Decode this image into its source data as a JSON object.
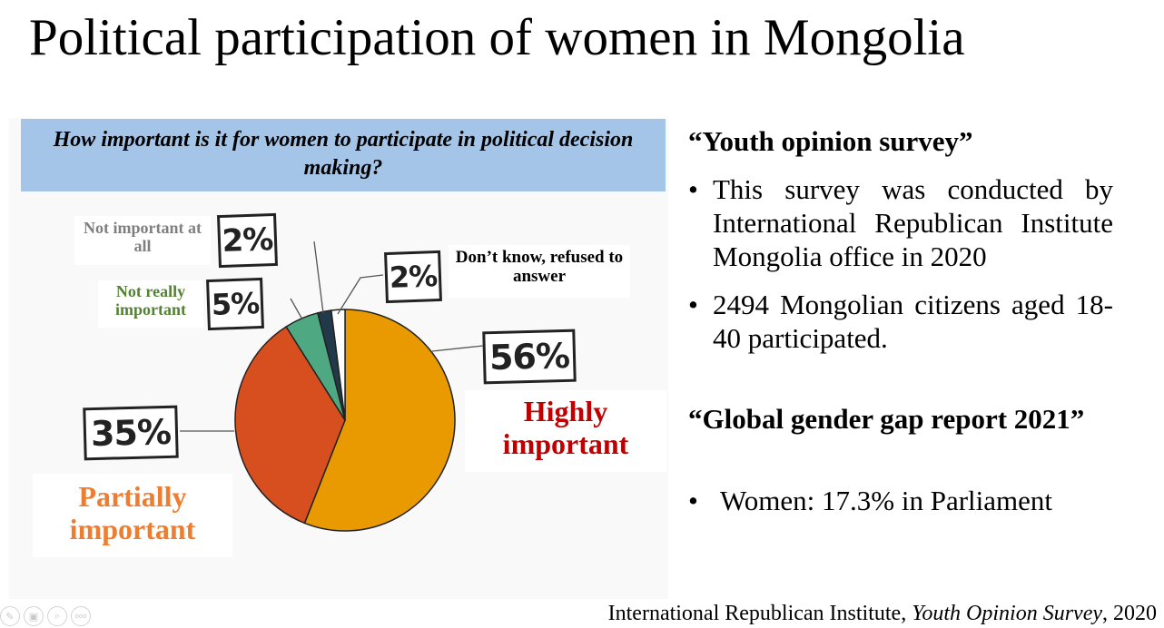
{
  "title": "Political participation of women in Mongolia",
  "chart_data": {
    "type": "pie",
    "title": "How important is it for women to participate in political decision making?",
    "slices": [
      {
        "label": "Highly important",
        "value": 56,
        "value_label": "56%",
        "color": "#e89a00"
      },
      {
        "label": "Partially important",
        "value": 35,
        "value_label": "35%",
        "color": "#d84f1f"
      },
      {
        "label": "Not really important",
        "value": 5,
        "value_label": "5%",
        "color": "#4ea882"
      },
      {
        "label": "Not important at all",
        "value": 2,
        "value_label": "2%",
        "color": "#22394a"
      },
      {
        "label": "Don’t know, refused to answer",
        "value": 2,
        "value_label": "2%",
        "color": "#ffffff"
      }
    ],
    "label_colors": {
      "Highly important": "#c00000",
      "Partially important": "#ed7d31",
      "Not really important": "#548235",
      "Not important at all": "#7f7f7f",
      "Don’t know, refused to answer": "#000000"
    }
  },
  "survey": {
    "heading": "“Youth opinion survey”",
    "bullets": [
      "This survey was conducted by International Republican Institute Mongolia office in 2020",
      "2494 Mongolian citizens aged 18-40 participated."
    ]
  },
  "gender_gap": {
    "heading": "“Global gender gap report 2021”",
    "bullets": [
      "Women: 17.3% in Parliament"
    ]
  },
  "citation": {
    "prefix": "International Republican Institute, ",
    "title": "Youth Opinion Survey",
    "suffix": ", 2020"
  },
  "toolbar": {
    "icons": [
      "pen-icon",
      "slides-icon",
      "zoom-icon",
      "more-icon"
    ],
    "more_text": "ooo"
  }
}
